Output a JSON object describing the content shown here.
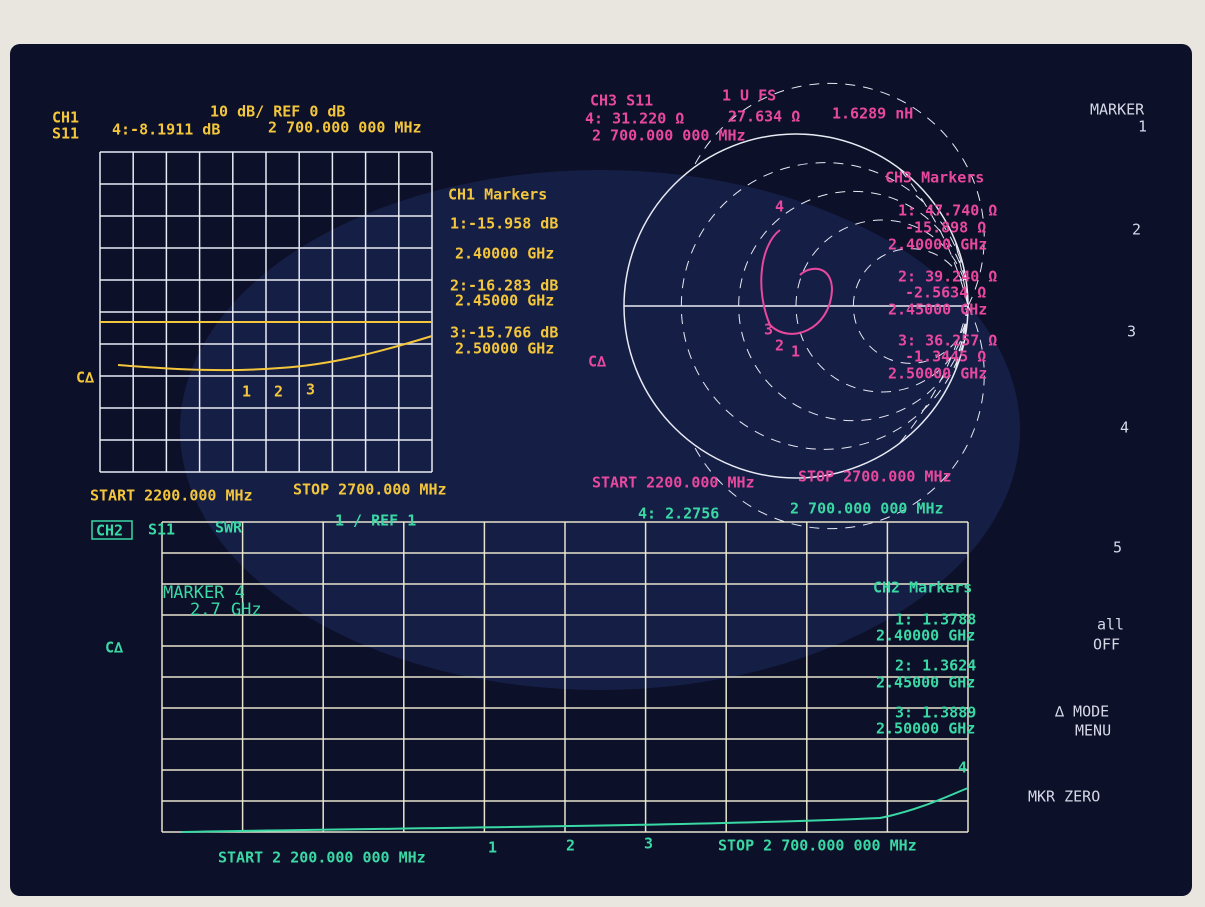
{
  "ch1": {
    "channel": "CH1",
    "param": "S11",
    "scale": "10 dB/ REF 0 dB",
    "active_marker": "4:-8.1911 dB",
    "active_freq": "2 700.000 000 MHz",
    "markers_title": "CH1 Markers",
    "markers": [
      {
        "value": "1:-15.958 dB",
        "freq": "2.40000 GHz"
      },
      {
        "value": "2:-16.283 dB",
        "freq": "2.45000 GHz"
      },
      {
        "value": "3:-15.766 dB",
        "freq": "2.50000 GHz"
      }
    ],
    "ref": "C∆",
    "trace_markers": [
      "1",
      "2",
      "3"
    ],
    "start": "START 2200.000 MHz",
    "stop": "STOP 2700.000 MHz"
  },
  "ch3": {
    "channel": "CH3 S11",
    "scale": "1 U FS",
    "active_marker": "4: 31.220 Ω",
    "active_reactance": "27.634 Ω",
    "active_inductance": "1.6289 nH",
    "active_freq": "2 700.000 000 MHz",
    "markers_title": "CH3 Markers",
    "markers": [
      {
        "r": "1: 47.740 Ω",
        "x": "-15.898 Ω",
        "freq": "2.40000 GHz"
      },
      {
        "r": "2: 39.240 Ω",
        "x": "-2.5634 Ω",
        "freq": "2.45000 GHz"
      },
      {
        "r": "3: 36.257 Ω",
        "x": "-1.3445 Ω",
        "freq": "2.50000 GHz"
      }
    ],
    "ref": "C∆",
    "trace_markers": [
      "4",
      "3",
      "2",
      "1"
    ],
    "start": "START 2200.000 MHz",
    "stop": "STOP 2700.000 MHz"
  },
  "ch2": {
    "channel": "CH2",
    "param": "S11",
    "format": "SWR",
    "scale": "1 / REF 1",
    "active_marker": "4: 2.2756",
    "active_freq": "2 700.000 000 MHz",
    "marker_note": "MARKER 4",
    "marker_note_freq": "2.7 GHz",
    "markers_title": "CH2 Markers",
    "markers": [
      {
        "value": "1: 1.3788",
        "freq": "2.40000 GHz"
      },
      {
        "value": "2: 1.3624",
        "freq": "2.45000 GHz"
      },
      {
        "value": "3: 1.3889",
        "freq": "2.50000 GHz"
      }
    ],
    "ref": "C∆",
    "trace_markers": [
      "1",
      "2",
      "3",
      "4"
    ],
    "start": "START 2 200.000 000 MHz",
    "stop": "STOP 2 700.000 000 MHz"
  },
  "softkeys": {
    "title": "MARKER",
    "keys": [
      "1",
      "2",
      "3",
      "4",
      "5"
    ],
    "all": "all",
    "off": "OFF",
    "mode": "∆ MODE",
    "menu": "MENU",
    "zero": "MKR ZERO"
  }
}
